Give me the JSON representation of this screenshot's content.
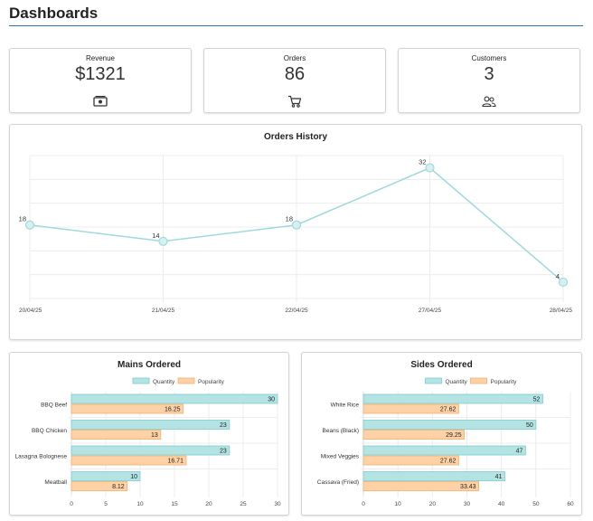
{
  "page": {
    "title": "Dashboards"
  },
  "stats": [
    {
      "label": "Revenue",
      "value": "$1321",
      "icon": "cash-icon"
    },
    {
      "label": "Orders",
      "value": "86",
      "icon": "cart-icon"
    },
    {
      "label": "Customers",
      "value": "3",
      "icon": "users-icon"
    }
  ],
  "colors": {
    "accent_rule": "#2f6fb0",
    "line_series": "#9fd9dd",
    "quantity_fill": "#b3e3e3",
    "quantity_border": "#7ccccf",
    "popularity_fill": "#ffd2a6",
    "popularity_border": "#f5ad6e"
  },
  "chart_data": [
    {
      "type": "line",
      "title": "Orders History",
      "x": [
        "20/04/25",
        "21/04/25",
        "22/04/25",
        "27/04/25",
        "28/04/25"
      ],
      "values": [
        18,
        14,
        18,
        32,
        4
      ],
      "data_labels": [
        "18",
        "14",
        "18",
        "32",
        "4"
      ],
      "ylim": [
        0,
        35
      ],
      "grid": true,
      "show_y_ticks": false
    },
    {
      "type": "bar",
      "orientation": "horizontal",
      "title": "Mains Ordered",
      "categories": [
        "BBQ Beef",
        "BBQ Chicken",
        "Lasagna Bolognese",
        "Meatball"
      ],
      "series": [
        {
          "name": "Quantity",
          "values": [
            30,
            23,
            23,
            10
          ],
          "labels": [
            "30",
            "23",
            "23",
            "10"
          ]
        },
        {
          "name": "Popularity",
          "values": [
            16.25,
            13,
            16.71,
            8.12
          ],
          "labels": [
            "16.25",
            "13",
            "16.71",
            "8.12"
          ]
        }
      ],
      "xlim": [
        0,
        30
      ],
      "ticks": [
        "0",
        "5",
        "10",
        "15",
        "20",
        "25",
        "30"
      ],
      "legend": "top"
    },
    {
      "type": "bar",
      "orientation": "horizontal",
      "title": "Sides Ordered",
      "categories": [
        "White Rice",
        "Beans (Black)",
        "Mixed Veggies",
        "Cassava (Fried)"
      ],
      "series": [
        {
          "name": "Quantity",
          "values": [
            52,
            50,
            47,
            41
          ],
          "labels": [
            "52",
            "50",
            "47",
            "41"
          ]
        },
        {
          "name": "Popularity",
          "values": [
            27.62,
            29.25,
            27.62,
            33.43
          ],
          "labels": [
            "27.62",
            "29.25",
            "27.62",
            "33.43"
          ]
        }
      ],
      "xlim": [
        0,
        60
      ],
      "ticks": [
        "0",
        "10",
        "20",
        "30",
        "40",
        "50",
        "60"
      ],
      "legend": "top"
    }
  ]
}
